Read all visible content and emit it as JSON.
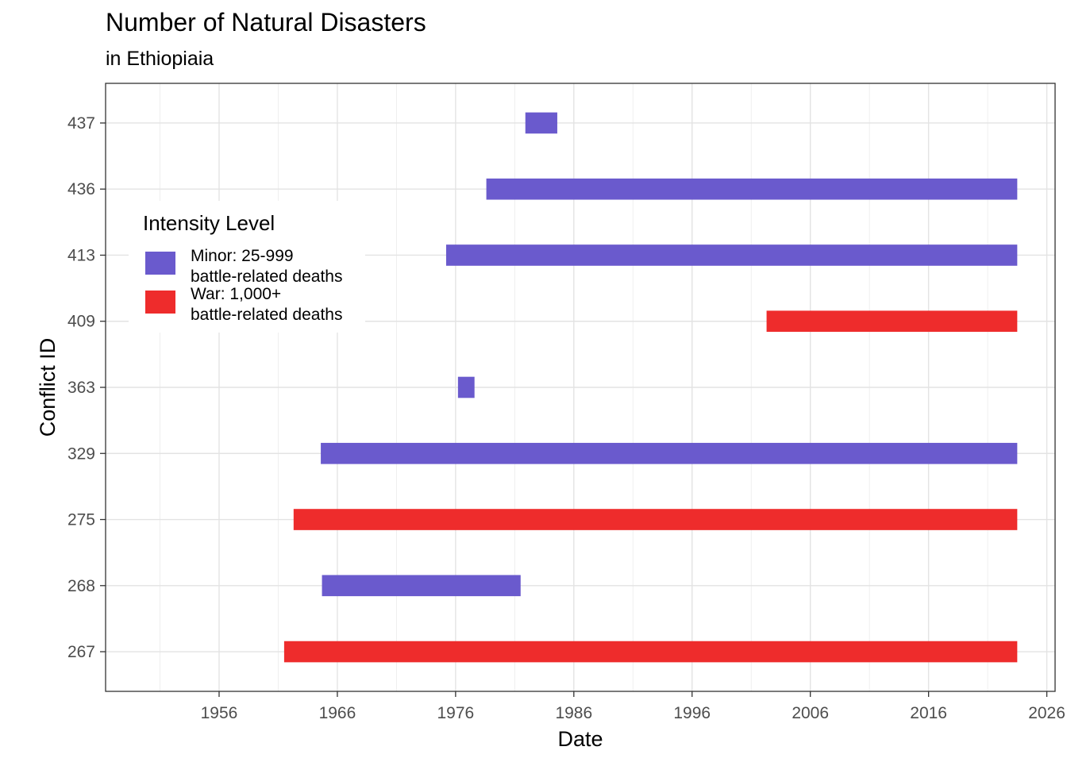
{
  "chart_data": {
    "type": "bar",
    "orientation": "horizontal-range",
    "title": "Number of Natural Disasters",
    "subtitle": "in Ethiopiaia",
    "xlabel": "Date",
    "ylabel": "Conflict ID",
    "xlim": [
      1946.4,
      2026.7
    ],
    "x_ticks": [
      1956,
      1966,
      1976,
      1986,
      1996,
      2006,
      2016,
      2026
    ],
    "categories": [
      "267",
      "268",
      "275",
      "329",
      "363",
      "409",
      "413",
      "436",
      "437"
    ],
    "grid": true,
    "legend": {
      "title": "Intensity Level",
      "placement": "top-left inside",
      "items": [
        {
          "key": "minor",
          "label_line1": "Minor: 25-999",
          "label_line2": "battle-related deaths",
          "color": "#6a5acd"
        },
        {
          "key": "war",
          "label_line1": "War: 1,000+",
          "label_line2": "battle-related deaths",
          "color": "#ee2c2c"
        }
      ]
    },
    "bars": [
      {
        "id": "437",
        "start": 1981.9,
        "end": 1984.6,
        "intensity": "minor"
      },
      {
        "id": "436",
        "start": 1978.6,
        "end": 2023.5,
        "intensity": "minor"
      },
      {
        "id": "413",
        "start": 1975.2,
        "end": 2023.5,
        "intensity": "minor"
      },
      {
        "id": "409",
        "start": 2002.3,
        "end": 2023.5,
        "intensity": "war"
      },
      {
        "id": "363",
        "start": 1976.2,
        "end": 1977.6,
        "intensity": "minor"
      },
      {
        "id": "329",
        "start": 1964.6,
        "end": 2023.5,
        "intensity": "minor"
      },
      {
        "id": "275",
        "start": 1962.3,
        "end": 2023.5,
        "intensity": "war"
      },
      {
        "id": "268",
        "start": 1964.7,
        "end": 1981.5,
        "intensity": "minor"
      },
      {
        "id": "267",
        "start": 1961.5,
        "end": 2023.5,
        "intensity": "war"
      }
    ]
  }
}
